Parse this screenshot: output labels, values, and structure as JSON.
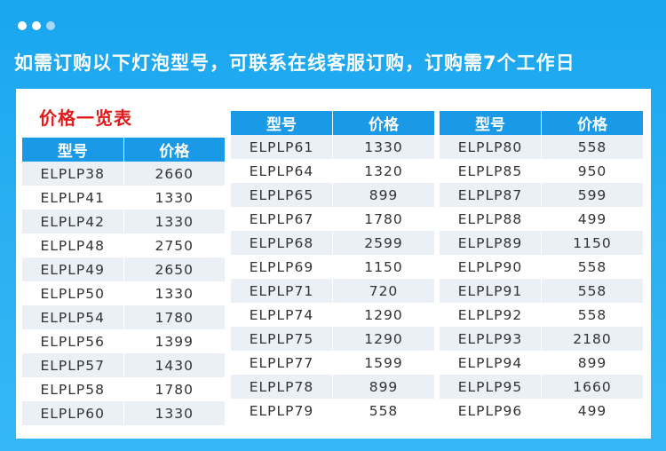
{
  "header": {
    "dot_colors": [
      "#ffffff",
      "#ffffff",
      "#a8d8f7"
    ],
    "headline": "如需订购以下灯泡型号，可联系在线客服订购，订购需7个工作日"
  },
  "card": {
    "title": "价格一览表"
  },
  "tables": [
    {
      "headers": [
        "型号",
        "价格"
      ],
      "rows": [
        [
          "ELPLP38",
          "2660"
        ],
        [
          "ELPLP41",
          "1330"
        ],
        [
          "ELPLP42",
          "1330"
        ],
        [
          "ELPLP48",
          "2750"
        ],
        [
          "ELPLP49",
          "2650"
        ],
        [
          "ELPLP50",
          "1330"
        ],
        [
          "ELPLP54",
          "1780"
        ],
        [
          "ELPLP56",
          "1399"
        ],
        [
          "ELPLP57",
          "1430"
        ],
        [
          "ELPLP58",
          "1780"
        ],
        [
          "ELPLP60",
          "1330"
        ]
      ]
    },
    {
      "headers": [
        "型号",
        "价格"
      ],
      "rows": [
        [
          "ELPLP61",
          "1330"
        ],
        [
          "ELPLP64",
          "1320"
        ],
        [
          "ELPLP65",
          "899"
        ],
        [
          "ELPLP67",
          "1780"
        ],
        [
          "ELPLP68",
          "2599"
        ],
        [
          "ELPLP69",
          "1150"
        ],
        [
          "ELPLP71",
          "720"
        ],
        [
          "ELPLP74",
          "1290"
        ],
        [
          "ELPLP75",
          "1290"
        ],
        [
          "ELPLP77",
          "1599"
        ],
        [
          "ELPLP78",
          "899"
        ],
        [
          "ELPLP79",
          "558"
        ]
      ]
    },
    {
      "headers": [
        "型号",
        "价格"
      ],
      "rows": [
        [
          "ELPLP80",
          "558"
        ],
        [
          "ELPLP85",
          "950"
        ],
        [
          "ELPLP87",
          "599"
        ],
        [
          "ELPLP88",
          "499"
        ],
        [
          "ELPLP89",
          "1150"
        ],
        [
          "ELPLP90",
          "558"
        ],
        [
          "ELPLP91",
          "558"
        ],
        [
          "ELPLP92",
          "558"
        ],
        [
          "ELPLP93",
          "2180"
        ],
        [
          "ELPLP94",
          "899"
        ],
        [
          "ELPLP95",
          "1660"
        ],
        [
          "ELPLP96",
          "499"
        ]
      ]
    }
  ]
}
